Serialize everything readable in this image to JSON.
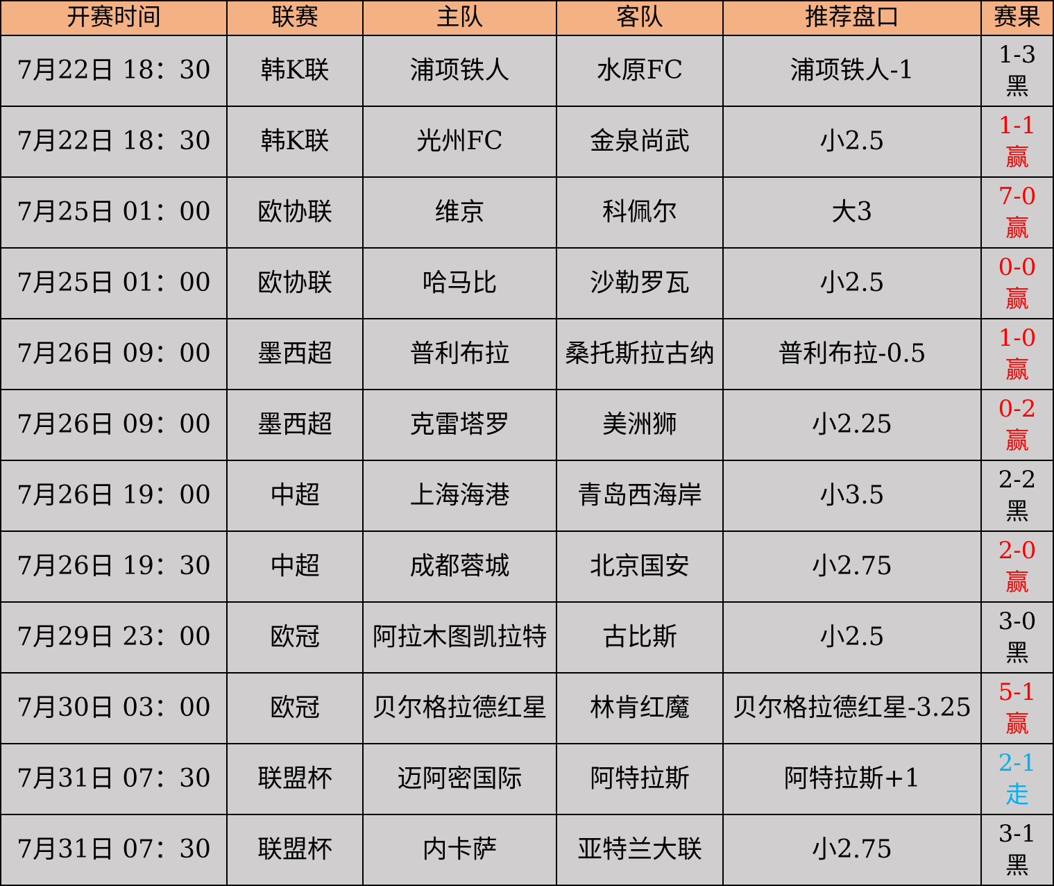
{
  "table": {
    "columns": [
      "开赛时间",
      "联赛",
      "主队",
      "客队",
      "推荐盘口",
      "赛果"
    ],
    "colors": {
      "header_bg": "#F4B183",
      "row_bg": "#D0CECE",
      "border": "#000000",
      "win_text": "#FF0000",
      "lose_text": "#000000",
      "push_text": "#00B0F0"
    },
    "rows": [
      {
        "time": "7月22日 18：30",
        "league": "韩K联",
        "home": "浦项铁人",
        "away": "水原FC",
        "handicap": "浦项铁人-1",
        "result": {
          "score": "1-3",
          "verdict": "黑",
          "type": "lose"
        }
      },
      {
        "time": "7月22日 18：30",
        "league": "韩K联",
        "home": "光州FC",
        "away": "金泉尚武",
        "handicap": "小2.5",
        "result": {
          "score": "1-1",
          "verdict": "赢",
          "type": "win"
        }
      },
      {
        "time": "7月25日 01：00",
        "league": "欧协联",
        "home": "维京",
        "away": "科佩尔",
        "handicap": "大3",
        "result": {
          "score": "7-0",
          "verdict": "赢",
          "type": "win"
        }
      },
      {
        "time": "7月25日 01：00",
        "league": "欧协联",
        "home": "哈马比",
        "away": "沙勒罗瓦",
        "handicap": "小2.5",
        "result": {
          "score": "0-0",
          "verdict": "赢",
          "type": "win"
        }
      },
      {
        "time": "7月26日 09：00",
        "league": "墨西超",
        "home": "普利布拉",
        "away": "桑托斯拉古纳",
        "handicap": "普利布拉-0.5",
        "result": {
          "score": "1-0",
          "verdict": "赢",
          "type": "win"
        }
      },
      {
        "time": "7月26日 09：00",
        "league": "墨西超",
        "home": "克雷塔罗",
        "away": "美洲狮",
        "handicap": "小2.25",
        "result": {
          "score": "0-2",
          "verdict": "赢",
          "type": "win"
        }
      },
      {
        "time": "7月26日 19：00",
        "league": "中超",
        "home": "上海海港",
        "away": "青岛西海岸",
        "handicap": "小3.5",
        "result": {
          "score": "2-2",
          "verdict": "黑",
          "type": "lose"
        }
      },
      {
        "time": "7月26日 19：30",
        "league": "中超",
        "home": "成都蓉城",
        "away": "北京国安",
        "handicap": "小2.75",
        "result": {
          "score": "2-0",
          "verdict": "赢",
          "type": "win"
        }
      },
      {
        "time": "7月29日 23：00",
        "league": "欧冠",
        "home": "阿拉木图凯拉特",
        "away": "古比斯",
        "handicap": "小2.5",
        "result": {
          "score": "3-0",
          "verdict": "黑",
          "type": "lose"
        }
      },
      {
        "time": "7月30日 03：00",
        "league": "欧冠",
        "home": "贝尔格拉德红星",
        "away": "林肯红魔",
        "handicap": "贝尔格拉德红星-3.25",
        "result": {
          "score": "5-1",
          "verdict": "赢",
          "type": "win"
        }
      },
      {
        "time": "7月31日 07：30",
        "league": "联盟杯",
        "home": "迈阿密国际",
        "away": "阿特拉斯",
        "handicap": "阿特拉斯+1",
        "result": {
          "score": "2-1",
          "verdict": "走",
          "type": "push"
        }
      },
      {
        "time": "7月31日 07：30",
        "league": "联盟杯",
        "home": "内卡萨",
        "away": "亚特兰大联",
        "handicap": "小2.75",
        "result": {
          "score": "3-1",
          "verdict": "黑",
          "type": "lose"
        }
      }
    ]
  }
}
